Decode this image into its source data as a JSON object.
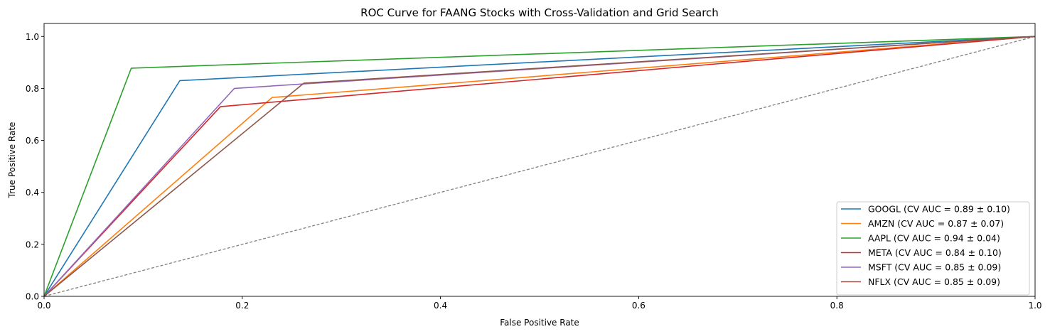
{
  "chart_data": {
    "type": "line",
    "title": "ROC Curve for FAANG Stocks with Cross-Validation and Grid Search",
    "xlabel": "False Positive Rate",
    "ylabel": "True Positive Rate",
    "xlim": [
      0.0,
      1.0
    ],
    "ylim": [
      0.0,
      1.05
    ],
    "x_ticks": [
      "0.0",
      "0.2",
      "0.4",
      "0.6",
      "0.8",
      "1.0"
    ],
    "y_ticks": [
      "0.0",
      "0.2",
      "0.4",
      "0.6",
      "0.8",
      "1.0"
    ],
    "grid": false,
    "legend_position": "lower-right",
    "series": [
      {
        "name": "GOOGL (CV AUC = 0.89 ± 0.10)",
        "color": "#1f77b4",
        "x": [
          0.0,
          0.137,
          1.0
        ],
        "y": [
          0.0,
          0.83,
          1.0
        ]
      },
      {
        "name": "AMZN (CV AUC = 0.87 ± 0.07)",
        "color": "#ff7f0e",
        "x": [
          0.0,
          0.23,
          1.0
        ],
        "y": [
          0.0,
          0.765,
          1.0
        ]
      },
      {
        "name": "AAPL (CV AUC = 0.94 ± 0.04)",
        "color": "#2ca02c",
        "x": [
          0.0,
          0.088,
          1.0
        ],
        "y": [
          0.0,
          0.878,
          1.0
        ]
      },
      {
        "name": "META (CV AUC = 0.84 ± 0.10)",
        "color": "#d62728",
        "x": [
          0.0,
          0.178,
          1.0
        ],
        "y": [
          0.0,
          0.73,
          1.0
        ]
      },
      {
        "name": "MSFT (CV AUC = 0.85 ± 0.09)",
        "color": "#9467bd",
        "x": [
          0.0,
          0.192,
          1.0
        ],
        "y": [
          0.0,
          0.8,
          1.0
        ]
      },
      {
        "name": "NFLX (CV AUC = 0.85 ± 0.09)",
        "color": "#8c564b",
        "x": [
          0.0,
          0.262,
          1.0
        ],
        "y": [
          0.0,
          0.82,
          1.0
        ]
      }
    ],
    "reference_line": {
      "x": [
        0.0,
        1.0
      ],
      "y": [
        0.0,
        1.0
      ],
      "color": "#808080",
      "style": "dashed"
    }
  }
}
